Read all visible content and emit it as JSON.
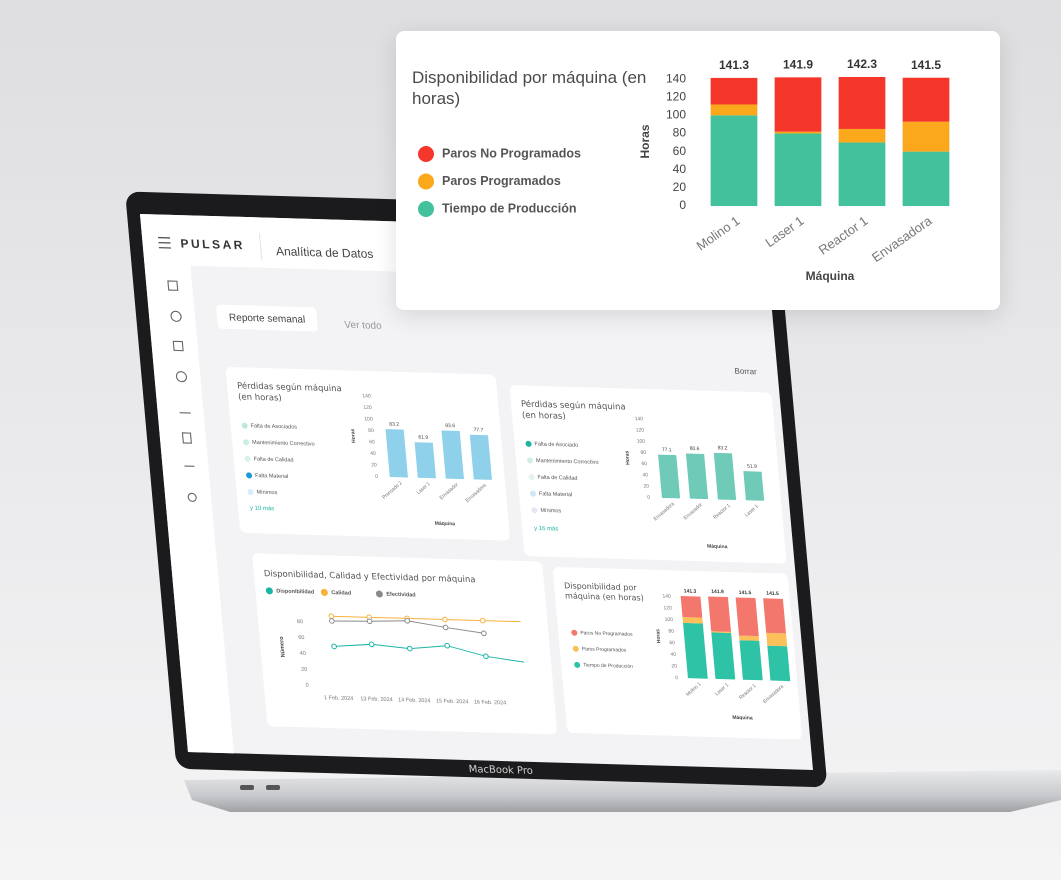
{
  "app": {
    "brand": "PULSAR",
    "section": "Analítica de Datos",
    "tabs": [
      "Reporte semanal",
      "Ver todo"
    ],
    "clear": "Borrar"
  },
  "laptop": {
    "model": "MacBook Pro"
  },
  "chart_data": [
    {
      "type": "bar",
      "title": "Disponibilidad por máquina (en horas)",
      "categories": [
        "Molino 1",
        "Laser 1",
        "Reactor 1",
        "Envasadora"
      ],
      "series": [
        {
          "name": "Tiempo de Producción",
          "color": "#43c19c",
          "values": [
            100,
            80,
            70,
            60
          ]
        },
        {
          "name": "Paros Programados",
          "color": "#fba81d",
          "values": [
            12,
            2,
            15,
            33
          ]
        },
        {
          "name": "Paros No Programados",
          "color": "#f5362a",
          "values": [
            29.3,
            59.9,
            57.3,
            48.5
          ]
        }
      ],
      "totals": [
        141.3,
        141.9,
        142.3,
        141.5
      ],
      "xlabel": "Máquina",
      "ylabel": "Horas",
      "ylim": [
        0,
        142.3
      ],
      "yticks": [
        0,
        20,
        40,
        60,
        80,
        100,
        120,
        140
      ],
      "grid": false
    },
    {
      "type": "bar",
      "title": "Pérdidas según máquina (en horas)",
      "legend_items": [
        {
          "name": "Falta de Asociados",
          "color": "#bfe8df"
        },
        {
          "name": "Mantenimiento Correctivo",
          "color": "#c9ece4"
        },
        {
          "name": "Falta de Calidad",
          "color": "#d9f1ec"
        },
        {
          "name": "Falta Material",
          "color": "#1a9ad6"
        },
        {
          "name": "Mínimos",
          "color": "#d6ecf8"
        }
      ],
      "more": "y 10 más",
      "categories": [
        "Prensado 2",
        "Laser 1",
        "Envasador",
        "Envasadora"
      ],
      "values": [
        83.2,
        61.9,
        83.6,
        77.7
      ],
      "color": "#8fd0ea",
      "xlabel": "Máquina",
      "ylabel": "Horas",
      "ylim": [
        0,
        140
      ],
      "yticks": [
        0,
        20,
        40,
        60,
        80,
        100,
        120,
        140
      ],
      "grid": false
    },
    {
      "type": "bar",
      "title": "Pérdidas según máquina (en horas)",
      "legend_items": [
        {
          "name": "Falta de Asociado",
          "color": "#1bb5a4"
        },
        {
          "name": "Mantenimiento Correctivo",
          "color": "#d2ede7"
        },
        {
          "name": "Falta de Calidad",
          "color": "#e3f3ef"
        },
        {
          "name": "Falta Material",
          "color": "#cfe6f5"
        },
        {
          "name": "Mínimos",
          "color": "#ece3f2"
        }
      ],
      "more": "y 16 más",
      "categories": [
        "Envasadora",
        "Envasador",
        "Reactor 1",
        "Laser 1"
      ],
      "values": [
        77.1,
        80.6,
        83.2,
        51.9
      ],
      "color": "#6fcab8",
      "xlabel": "Máquina",
      "ylabel": "Horas",
      "ylim": [
        0,
        140
      ],
      "yticks": [
        0,
        20,
        40,
        60,
        80,
        100,
        120,
        140
      ],
      "grid": false
    },
    {
      "type": "line",
      "title": "Disponibilidad, Calidad y Efectividad por máquina",
      "categories": [
        "1 Feb. 2024",
        "13 Feb. 2024",
        "14 Feb. 2024",
        "15 Feb. 2024",
        "16 Feb. 2024",
        null
      ],
      "series": [
        {
          "name": "Disponibilidad",
          "color": "#1bb5a4",
          "values": [
            50,
            54,
            50,
            55,
            43,
            37
          ]
        },
        {
          "name": "Calidad",
          "color": "#f8b13a",
          "values": [
            88,
            88,
            88,
            88,
            88,
            88
          ]
        },
        {
          "name": "Efectividad",
          "color": "#8a8a8a",
          "values": [
            82,
            83,
            85,
            78,
            72,
            null
          ]
        }
      ],
      "ylabel": "Número",
      "ylim": [
        0,
        95
      ],
      "yticks": [
        0,
        20,
        40,
        60,
        80
      ],
      "grid": false
    },
    {
      "type": "bar",
      "title": "Disponibilidad por máquina (en horas)",
      "categories": [
        "Molino 1",
        "Laser 1",
        "Reactor 1",
        "Envasadora"
      ],
      "series": [
        {
          "name": "Tiempo de Producción",
          "color": "#2ec2a6",
          "values": [
            95,
            80,
            68,
            60
          ]
        },
        {
          "name": "Paros Programados",
          "color": "#fbc05a",
          "values": [
            10,
            2,
            8,
            22
          ]
        },
        {
          "name": "Paros No Programados",
          "color": "#f3776d",
          "values": [
            36.3,
            59.9,
            65.5,
            59.5
          ]
        }
      ],
      "totals": [
        141.3,
        141.9,
        141.5,
        141.5
      ],
      "xlabel": "Máquina",
      "ylabel": "Horas",
      "ylim": [
        0,
        141.9
      ],
      "yticks": [
        0,
        20,
        40,
        60,
        80,
        100,
        120,
        140
      ],
      "grid": false
    }
  ]
}
